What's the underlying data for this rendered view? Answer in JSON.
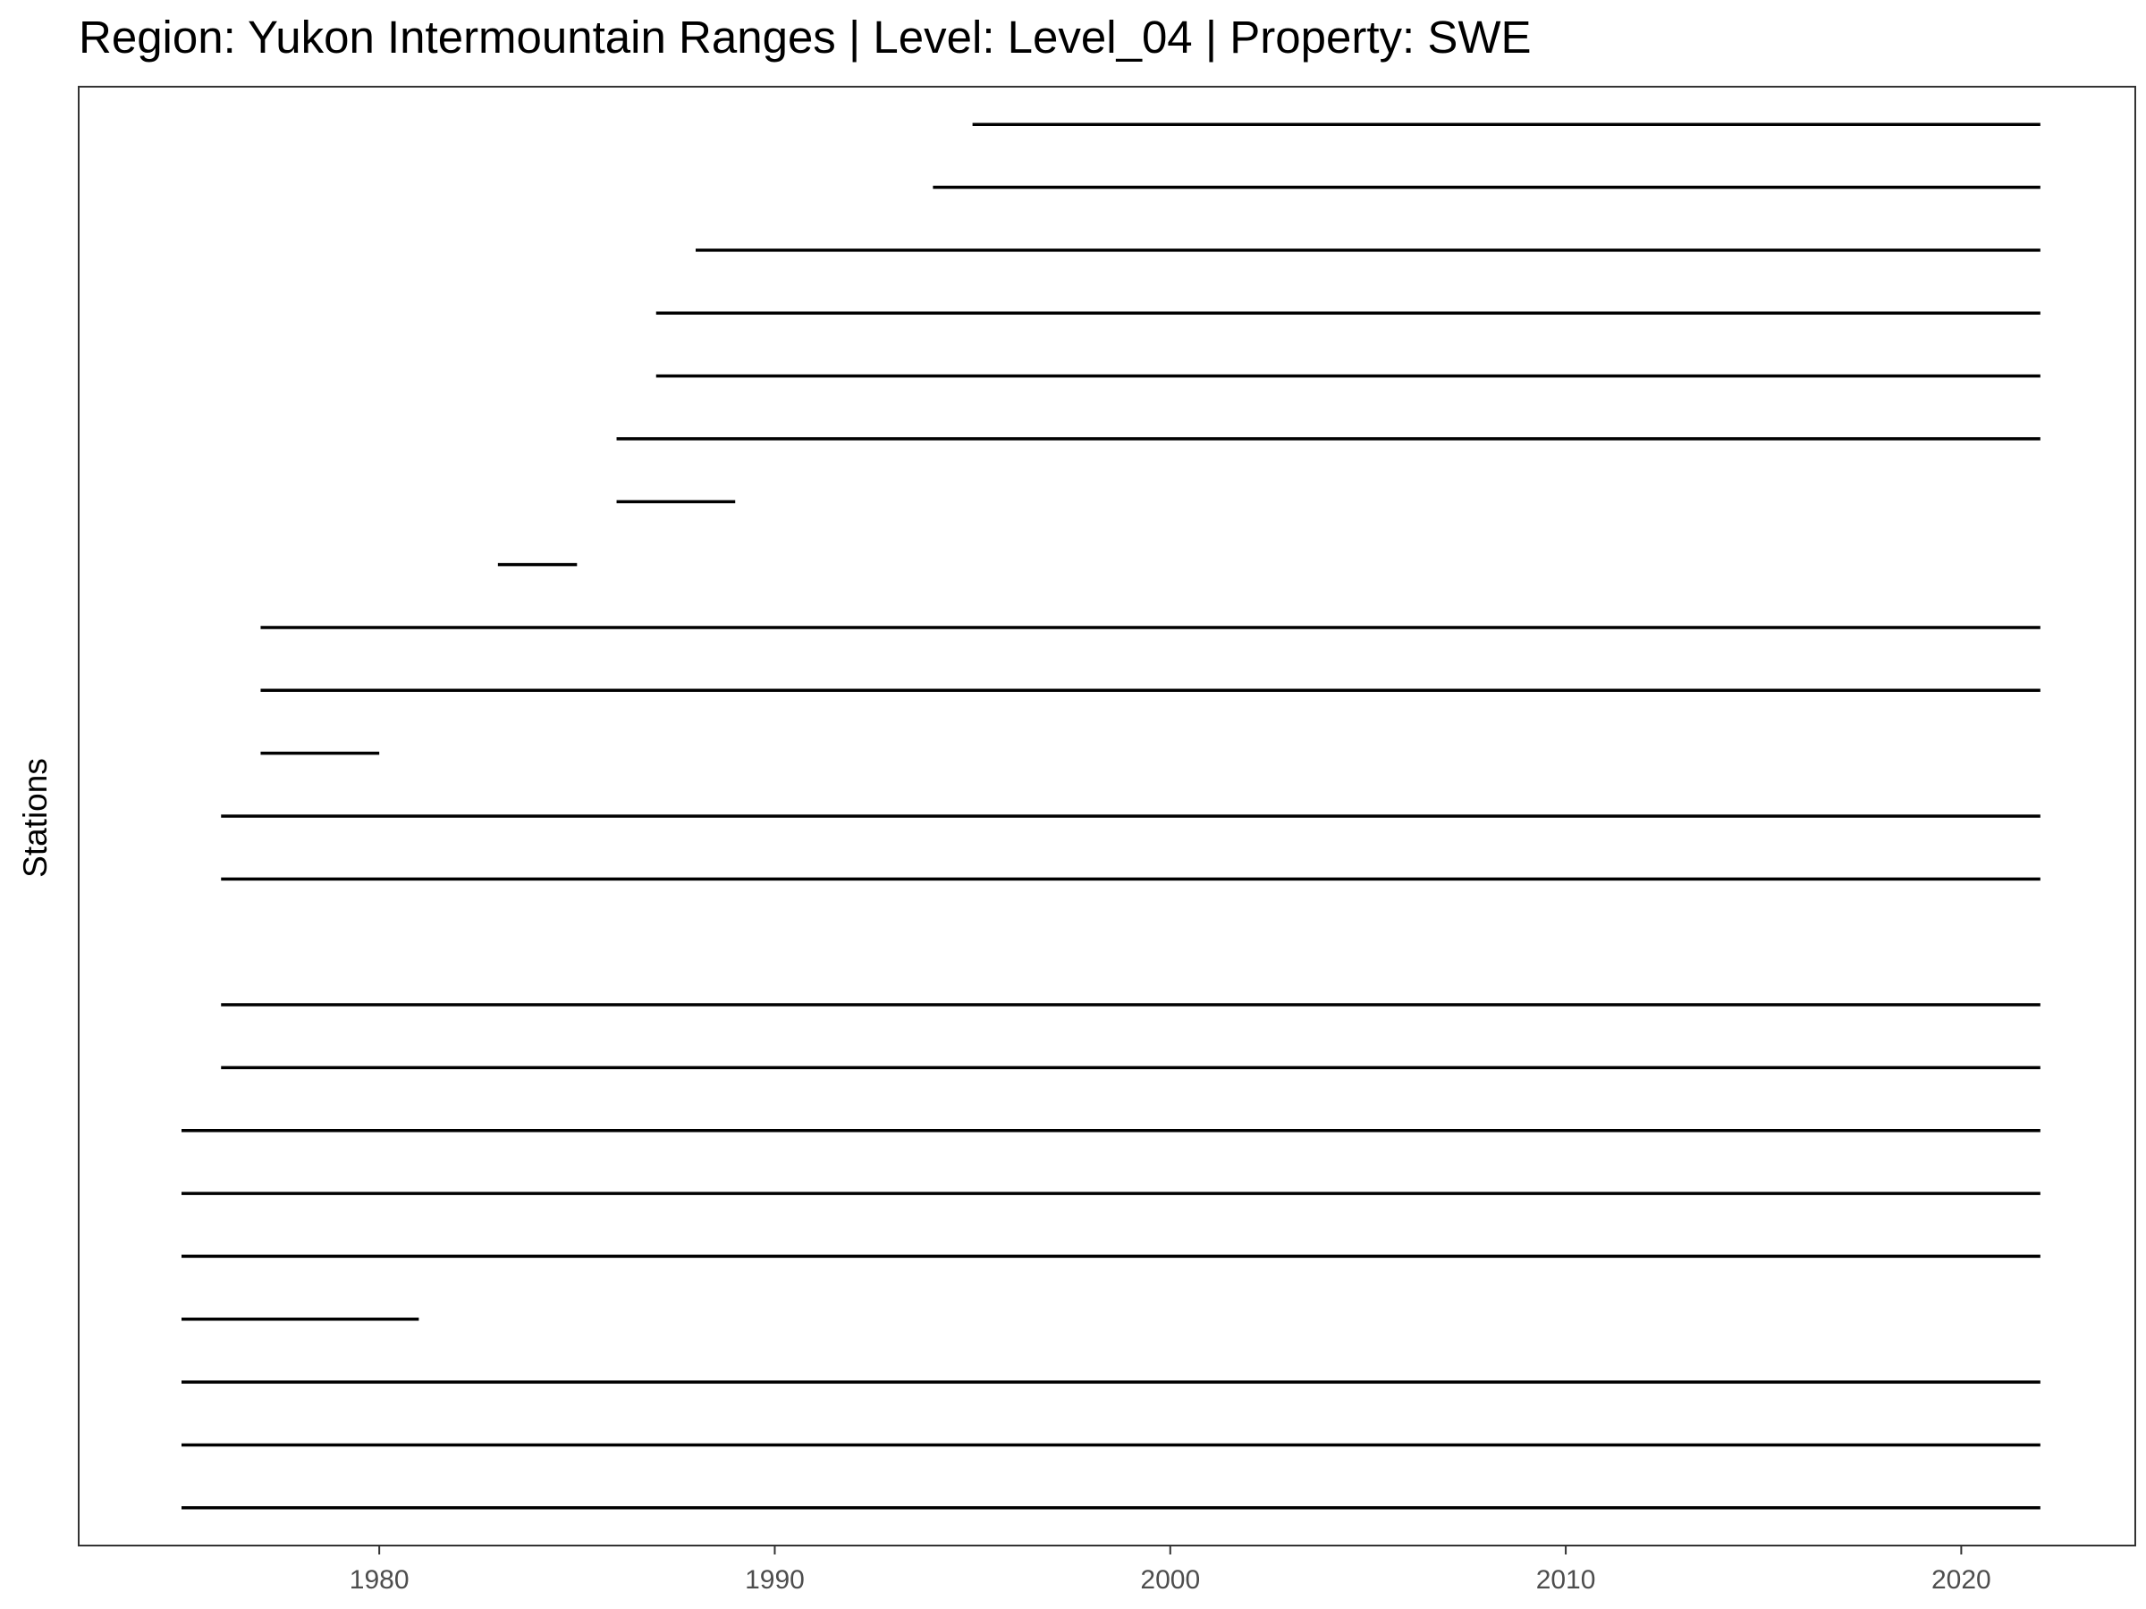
{
  "chart_data": {
    "type": "line",
    "title": "Region: Yukon Intermountain Ranges | Level: Level_04 | Property: SWE",
    "xlabel": "",
    "ylabel": "Stations",
    "xlim": [
      1972.4,
      2024.4
    ],
    "x_ticks": [
      "1980",
      "1990",
      "2000",
      "2010",
      "2020"
    ],
    "x_tick_values": [
      1980,
      1990,
      2000,
      2010,
      2020
    ],
    "grid": false,
    "legend": "none",
    "line_color": "#000000",
    "series": [
      {
        "station_index": 1,
        "values": [
          1975,
          2022
        ]
      },
      {
        "station_index": 2,
        "values": [
          1975,
          2022
        ]
      },
      {
        "station_index": 3,
        "values": [
          1975,
          2022
        ]
      },
      {
        "station_index": 4,
        "values": [
          1975,
          1981
        ]
      },
      {
        "station_index": 5,
        "values": [
          1975,
          2022
        ]
      },
      {
        "station_index": 6,
        "values": [
          1975,
          2022
        ]
      },
      {
        "station_index": 7,
        "values": [
          1975,
          2022
        ]
      },
      {
        "station_index": 8,
        "values": [
          1976,
          2022
        ]
      },
      {
        "station_index": 9,
        "values": [
          1976,
          2022
        ]
      },
      {
        "station_index": 10,
        "values": null
      },
      {
        "station_index": 11,
        "values": [
          1976,
          2022
        ]
      },
      {
        "station_index": 12,
        "values": [
          1976,
          2022
        ]
      },
      {
        "station_index": 13,
        "values": [
          1977,
          1980
        ]
      },
      {
        "station_index": 14,
        "values": [
          1977,
          2022
        ]
      },
      {
        "station_index": 15,
        "values": [
          1977,
          2022
        ]
      },
      {
        "station_index": 16,
        "values": [
          1983,
          1985
        ]
      },
      {
        "station_index": 17,
        "values": [
          1986,
          1989
        ]
      },
      {
        "station_index": 18,
        "values": [
          1986,
          2022
        ]
      },
      {
        "station_index": 19,
        "values": [
          1987,
          2022
        ]
      },
      {
        "station_index": 20,
        "values": [
          1987,
          2022
        ]
      },
      {
        "station_index": 21,
        "values": [
          1988,
          2022
        ]
      },
      {
        "station_index": 22,
        "values": [
          1994,
          2022
        ]
      },
      {
        "station_index": 23,
        "values": [
          1995,
          2022
        ]
      }
    ]
  }
}
